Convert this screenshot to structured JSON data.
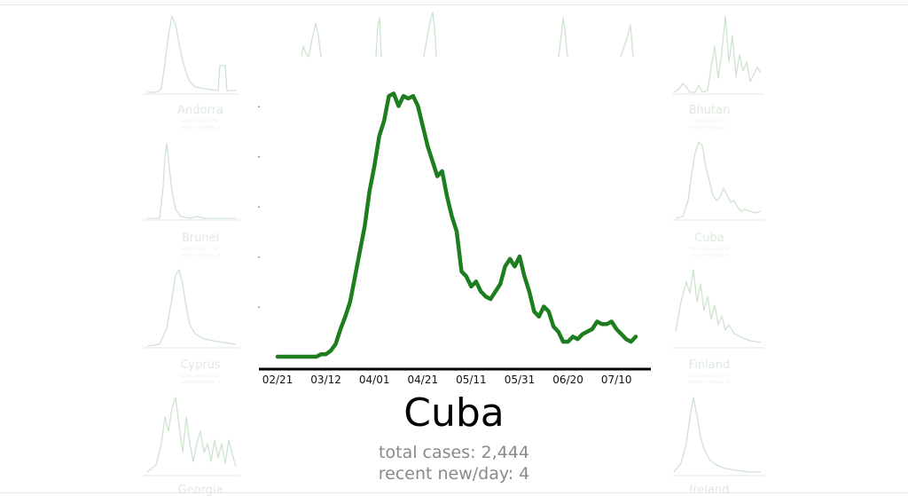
{
  "chart_data": {
    "type": "line",
    "title": "Cuba",
    "stats": {
      "total_cases": "total cases: 2,444",
      "recent_new_per_day": "recent new/day: 4"
    },
    "x_tick_labels": [
      "02/21",
      "03/12",
      "04/01",
      "04/21",
      "05/11",
      "05/31",
      "06/20",
      "07/10"
    ],
    "x_tick_day_index": [
      0,
      20,
      40,
      60,
      80,
      100,
      120,
      140
    ],
    "ylim": [
      0,
      55
    ],
    "color": "#1e7d1e",
    "series": [
      {
        "day_index": [
          0,
          4,
          8,
          12,
          16,
          18,
          20,
          22,
          24,
          26,
          28,
          30,
          32,
          34,
          36,
          38,
          40,
          42,
          44,
          46,
          48,
          50,
          52,
          54,
          56,
          58,
          60,
          62,
          64,
          66,
          68,
          70,
          72,
          74,
          76,
          78,
          80,
          82,
          84,
          86,
          88,
          90,
          92,
          94,
          96,
          98,
          100,
          102,
          104,
          106,
          108,
          110,
          112,
          114,
          116,
          118,
          120,
          122,
          124,
          126,
          128,
          130,
          132,
          134,
          136,
          138,
          140,
          142,
          144,
          146,
          148
        ],
        "values": [
          0,
          0,
          0,
          0,
          0,
          0.5,
          0.5,
          1.2,
          2.5,
          5.5,
          8,
          11,
          16,
          21,
          26,
          33,
          38,
          44,
          47,
          52,
          52.5,
          50,
          52,
          51.5,
          52,
          50,
          46,
          42,
          39,
          36,
          37,
          32,
          28,
          25,
          17,
          16,
          14,
          15,
          13,
          12,
          11.5,
          13,
          14.5,
          18,
          19.5,
          18,
          20,
          16,
          13,
          9,
          8,
          10,
          9,
          6,
          5,
          3,
          3,
          4,
          3.5,
          4.5,
          5,
          5.5,
          7,
          6.5,
          6.5,
          7,
          5.5,
          4.5,
          3.5,
          3,
          4
        ]
      }
    ]
  },
  "background_panels": [
    {
      "label": "Andorra",
      "sub1": "total cases: 855",
      "sub2": "recent new/day: 0"
    },
    {
      "label": "Bhutan",
      "sub1": "total cases: 86",
      "sub2": "recent new/day: 2"
    },
    {
      "label": "Brunei",
      "sub1": "total cases: 141",
      "sub2": "recent new/day: 0"
    },
    {
      "label": "Cuba",
      "sub1": "total cases: 2,444",
      "sub2": "recent new/day: 4"
    },
    {
      "label": "Cyprus",
      "sub1": "total cases: 1,038",
      "sub2": "recent new/day: 3"
    },
    {
      "label": "Finland",
      "sub1": "total cases: 7,340",
      "sub2": "recent new/day: 10"
    },
    {
      "label": "Georgia",
      "sub1": "",
      "sub2": ""
    },
    {
      "label": "Ireland",
      "sub1": "",
      "sub2": ""
    }
  ]
}
